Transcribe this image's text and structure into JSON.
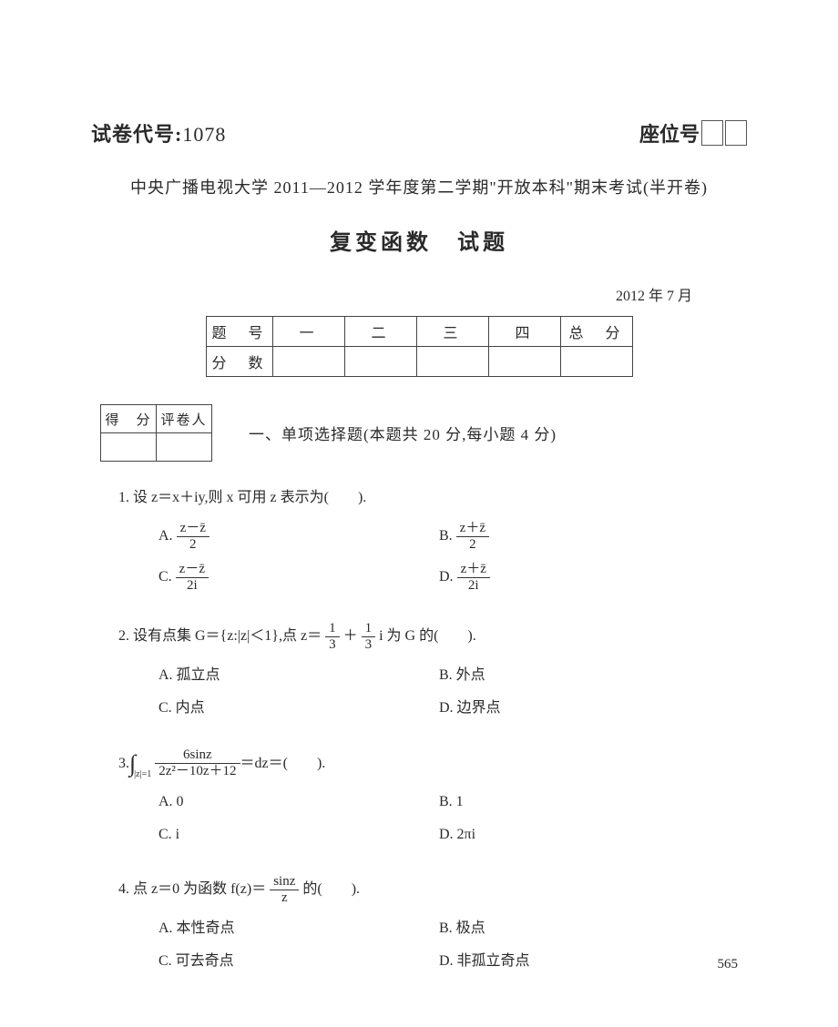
{
  "header": {
    "paper_code_label": "试卷代号:",
    "paper_code": "1078",
    "seat_label": "座位号"
  },
  "university_line": "中央广播电视大学 2011—2012 学年度第二学期\"开放本科\"期末考试(半开卷)",
  "exam_title": "复变函数　试题",
  "exam_date": "2012 年 7 月",
  "score_table": {
    "row1": [
      "题　号",
      "一",
      "二",
      "三",
      "四",
      "总　分"
    ],
    "row2_label": "分　数"
  },
  "grader_table": {
    "c1": "得　分",
    "c2": "评卷人"
  },
  "section1_title": "一、单项选择题(本题共 20 分,每小题 4 分)",
  "q1": {
    "stem_a": "1. 设 z＝x＋iy,则 x 可用 z 表示为(　　).",
    "A_pre": "A. ",
    "A_num": "z－z̄",
    "A_den": "2",
    "B_pre": "B. ",
    "B_num": "z＋z̄",
    "B_den": "2",
    "C_pre": "C. ",
    "C_num": "z－z̄",
    "C_den": "2i",
    "D_pre": "D. ",
    "D_num": "z＋z̄",
    "D_den": "2i"
  },
  "q2": {
    "stem_a": "2. 设有点集 G＝{z:|z|＜1},点 z＝",
    "frac1_n": "1",
    "frac1_d": "3",
    "stem_b": "＋",
    "frac2_n": "1",
    "frac2_d": "3",
    "stem_c": "i 为 G 的(　　).",
    "A": "A. 孤立点",
    "B": "B. 外点",
    "C": "C. 内点",
    "D": "D. 边界点"
  },
  "q3": {
    "stem_a": "3. ",
    "int_lim": "|z|=1",
    "frac_n": "6sinz",
    "frac_d": "2z²－10z＋12",
    "stem_b": "＝dz＝(　　).",
    "A": "A. 0",
    "B": "B. 1",
    "C": "C. i",
    "D": "D. 2πi"
  },
  "q4": {
    "stem_a": "4. 点 z＝0 为函数 f(z)＝",
    "frac_n": "sinz",
    "frac_d": "z",
    "stem_b": "的(　　).",
    "A": "A. 本性奇点",
    "B": "B. 极点",
    "C": "C. 可去奇点",
    "D": "D. 非孤立奇点"
  },
  "page_number": "565"
}
